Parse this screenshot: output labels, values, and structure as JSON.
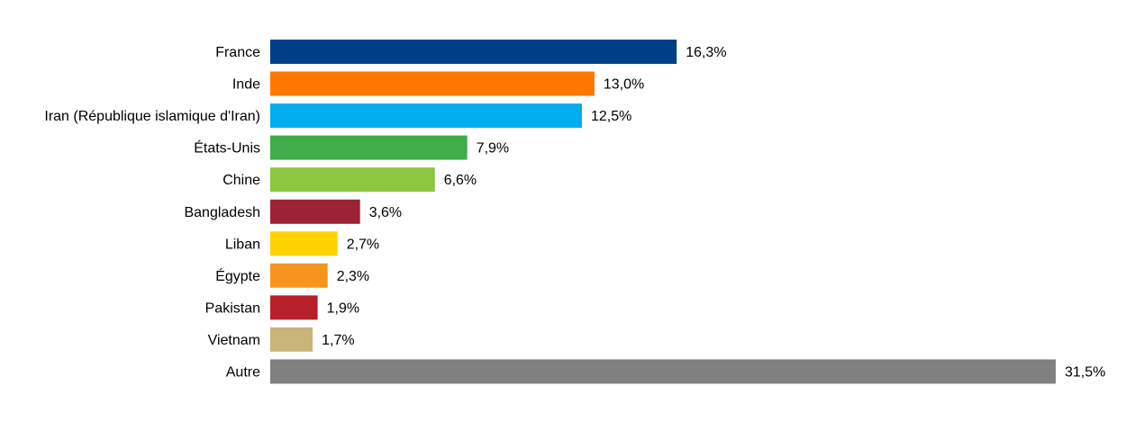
{
  "chart_data": {
    "type": "bar",
    "orientation": "horizontal",
    "title": "",
    "xlabel": "",
    "ylabel": "",
    "categories": [
      "France",
      "Inde",
      "Iran (République islamique d'Iran)",
      "États-Unis",
      "Chine",
      "Bangladesh",
      "Liban",
      "Égypte",
      "Pakistan",
      "Vietnam",
      "Autre"
    ],
    "values": [
      16.3,
      13.0,
      12.5,
      7.9,
      6.6,
      3.6,
      2.7,
      2.3,
      1.9,
      1.7,
      31.5
    ],
    "value_labels": [
      "16,3%",
      "13,0%",
      "12,5%",
      "7,9%",
      "6,6%",
      "3,6%",
      "2,7%",
      "2,3%",
      "1,9%",
      "1,7%",
      "31,5%"
    ],
    "colors": [
      "#003f87",
      "#ff7700",
      "#00adef",
      "#3fae49",
      "#8dc63f",
      "#9b2335",
      "#ffd200",
      "#f7941d",
      "#b5202a",
      "#c9b47a",
      "#808080"
    ],
    "xlim": [
      0,
      31.5
    ],
    "grid": false,
    "legend": "none"
  }
}
